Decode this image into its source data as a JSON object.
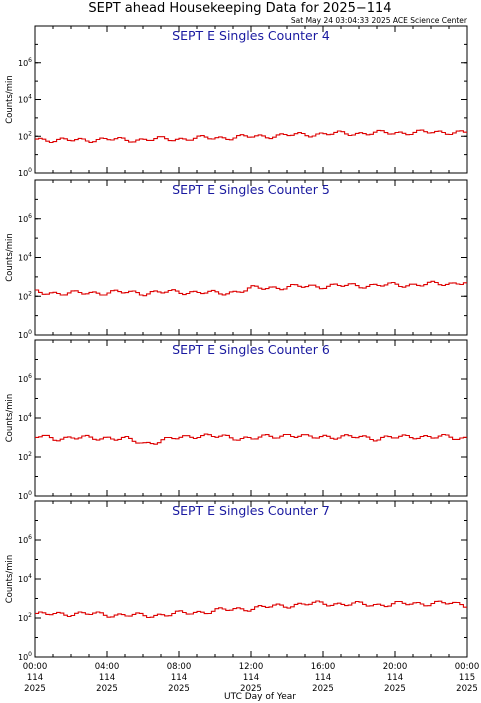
{
  "title": "SEPT ahead Housekeeping Data for 2025−114",
  "timestamp": "Sat May 24 03:04:33 2025 ACE Science Center",
  "xlabel": "UTC Day of Year",
  "colors": {
    "series": "#dd0000",
    "panel_title": "#1a1aa0",
    "axis": "#000000"
  },
  "chart_data": [
    {
      "type": "line",
      "title": "SEPT E Singles Counter 4",
      "ylabel": "Counts/min",
      "yscale": "log",
      "ylim": [
        1,
        100000000
      ],
      "yticks": [
        {
          "base": "10",
          "exp": "0"
        },
        {
          "base": "10",
          "exp": "2"
        },
        {
          "base": "10",
          "exp": "4"
        },
        {
          "base": "10",
          "exp": "6"
        }
      ],
      "xlim": [
        0,
        24
      ],
      "series": [
        {
          "x": [
            0,
            1,
            2,
            3,
            4,
            5,
            6,
            7,
            8,
            9,
            10,
            11,
            12,
            13,
            14,
            15,
            16,
            17,
            18,
            19,
            20,
            21,
            22,
            23,
            24
          ],
          "values": [
            70,
            62,
            60,
            65,
            68,
            63,
            66,
            70,
            72,
            78,
            82,
            88,
            95,
            105,
            115,
            125,
            135,
            140,
            145,
            150,
            155,
            160,
            165,
            170,
            150
          ]
        }
      ]
    },
    {
      "type": "line",
      "title": "SEPT E Singles Counter 5",
      "ylabel": "Counts/min",
      "yscale": "log",
      "ylim": [
        1,
        100000000
      ],
      "yticks": [
        {
          "base": "10",
          "exp": "0"
        },
        {
          "base": "10",
          "exp": "2"
        },
        {
          "base": "10",
          "exp": "4"
        },
        {
          "base": "10",
          "exp": "6"
        }
      ],
      "xlim": [
        0,
        24
      ],
      "series": [
        {
          "x": [
            0,
            1,
            2,
            3,
            4,
            5,
            6,
            7,
            8,
            9,
            10,
            11,
            12,
            13,
            14,
            15,
            16,
            17,
            18,
            19,
            20,
            21,
            22,
            23,
            24
          ],
          "values": [
            160,
            150,
            140,
            150,
            155,
            160,
            150,
            160,
            170,
            160,
            140,
            170,
            250,
            280,
            300,
            320,
            340,
            350,
            360,
            370,
            380,
            400,
            420,
            450,
            600
          ]
        }
      ]
    },
    {
      "type": "line",
      "title": "SEPT E Singles Counter 6",
      "ylabel": "Counts/min",
      "yscale": "log",
      "ylim": [
        1,
        100000000
      ],
      "yticks": [
        {
          "base": "10",
          "exp": "0"
        },
        {
          "base": "10",
          "exp": "2"
        },
        {
          "base": "10",
          "exp": "4"
        },
        {
          "base": "10",
          "exp": "6"
        }
      ],
      "xlim": [
        0,
        24
      ],
      "series": [
        {
          "x": [
            0,
            1,
            2,
            3,
            4,
            5,
            6,
            7,
            8,
            9,
            10,
            11,
            12,
            13,
            14,
            15,
            16,
            17,
            18,
            19,
            20,
            21,
            22,
            23,
            24
          ],
          "values": [
            1100,
            900,
            1000,
            900,
            1000,
            800,
            500,
            700,
            1000,
            1300,
            1100,
            1000,
            900,
            1100,
            1400,
            1000,
            1200,
            1000,
            1100,
            900,
            1000,
            1200,
            1000,
            1100,
            900
          ]
        }
      ]
    },
    {
      "type": "line",
      "title": "SEPT E Singles Counter 7",
      "ylabel": "Counts/min",
      "yscale": "log",
      "ylim": [
        1,
        100000000
      ],
      "yticks": [
        {
          "base": "10",
          "exp": "0"
        },
        {
          "base": "10",
          "exp": "2"
        },
        {
          "base": "10",
          "exp": "4"
        },
        {
          "base": "10",
          "exp": "6"
        }
      ],
      "xlim": [
        0,
        24
      ],
      "series": [
        {
          "x": [
            0,
            1,
            2,
            3,
            4,
            5,
            6,
            7,
            8,
            9,
            10,
            11,
            12,
            13,
            14,
            15,
            16,
            17,
            18,
            19,
            20,
            21,
            22,
            23,
            24
          ],
          "values": [
            150,
            160,
            170,
            160,
            150,
            140,
            130,
            150,
            170,
            200,
            240,
            280,
            320,
            380,
            450,
            520,
            560,
            520,
            500,
            480,
            520,
            550,
            580,
            560,
            450
          ]
        }
      ]
    }
  ],
  "xticks": [
    {
      "line1": "00:00",
      "line2": "114",
      "line3": "2025"
    },
    {
      "line1": "04:00",
      "line2": "114",
      "line3": "2025"
    },
    {
      "line1": "08:00",
      "line2": "114",
      "line3": "2025"
    },
    {
      "line1": "12:00",
      "line2": "114",
      "line3": "2025"
    },
    {
      "line1": "16:00",
      "line2": "114",
      "line3": "2025"
    },
    {
      "line1": "20:00",
      "line2": "114",
      "line3": "2025"
    },
    {
      "line1": "00:00",
      "line2": "115",
      "line3": "2025"
    }
  ]
}
